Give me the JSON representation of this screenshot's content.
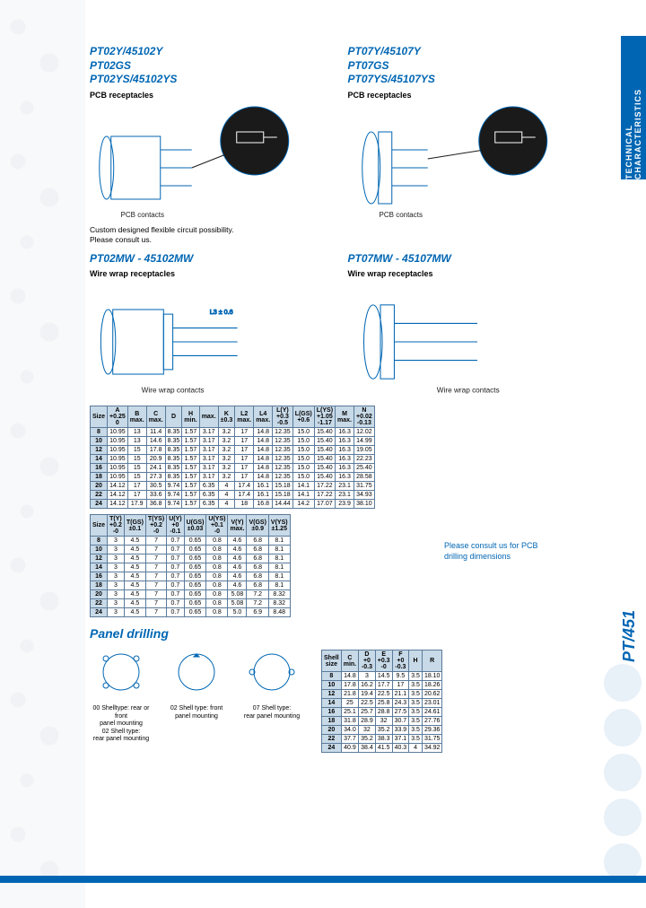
{
  "colors": {
    "brand": "#0066b3",
    "th_bg": "#c8dae8",
    "border": "#5a7a9a",
    "text": "#1a1a1a"
  },
  "side_tab": "TECHNICAL CHARACTERISTICS",
  "side_label": "PT/451",
  "section1": {
    "left": {
      "titles": [
        "PT02Y/45102Y",
        "PT02GS",
        "PT02YS/45102YS"
      ],
      "sub": "PCB receptacles",
      "contact_label": "PCB contacts",
      "note": "Custom designed flexible circuit possibility.\nPlease consult us."
    },
    "right": {
      "titles": [
        "PT07Y/45107Y",
        "PT07GS",
        "PT07YS/45107YS"
      ],
      "sub": "PCB receptacles",
      "contact_label": "PCB contacts"
    }
  },
  "section2": {
    "left": {
      "title": "PT02MW - 45102MW",
      "sub": "Wire wrap receptacles",
      "contact_label": "Wire wrap contacts"
    },
    "right": {
      "title": "PT07MW - 45107MW",
      "sub": "Wire wrap receptacles",
      "contact_label": "Wire wrap contacts"
    }
  },
  "table1": {
    "headers": [
      "Size",
      "A\n+0.25\n0",
      "B\nmax.",
      "C\nmax.",
      "D",
      "H\nmin.",
      "max.",
      "K\n±0.3",
      "L2\nmax.",
      "L4\nmax.",
      "L(Y)\n+0.3\n-0.5",
      "L(GS)\n+0.6",
      "L(YS)\n+1.05\n-1.17",
      "M\nmax.",
      "N\n+0.02\n-0.13"
    ],
    "rows": [
      [
        "8",
        "10.95",
        "13",
        "11.4",
        "8.35",
        "1.57",
        "3.17",
        "3.2",
        "17",
        "14.8",
        "12.35",
        "15.0",
        "15.40",
        "16.3",
        "12.02"
      ],
      [
        "10",
        "10.95",
        "13",
        "14.6",
        "8.35",
        "1.57",
        "3.17",
        "3.2",
        "17",
        "14.8",
        "12.35",
        "15.0",
        "15.40",
        "16.3",
        "14.99"
      ],
      [
        "12",
        "10.95",
        "15",
        "17.8",
        "8.35",
        "1.57",
        "3.17",
        "3.2",
        "17",
        "14.8",
        "12.35",
        "15.0",
        "15.40",
        "16.3",
        "19.05"
      ],
      [
        "14",
        "10.95",
        "15",
        "20.9",
        "8.35",
        "1.57",
        "3.17",
        "3.2",
        "17",
        "14.8",
        "12.35",
        "15.0",
        "15.40",
        "16.3",
        "22.23"
      ],
      [
        "16",
        "10.95",
        "15",
        "24.1",
        "8.35",
        "1.57",
        "3.17",
        "3.2",
        "17",
        "14.8",
        "12.35",
        "15.0",
        "15.40",
        "16.3",
        "25.40"
      ],
      [
        "18",
        "10.95",
        "15",
        "27.3",
        "8.35",
        "1.57",
        "3.17",
        "3.2",
        "17",
        "14.8",
        "12.35",
        "15.0",
        "15.40",
        "16.3",
        "28.58"
      ],
      [
        "20",
        "14.12",
        "17",
        "30.5",
        "9.74",
        "1.57",
        "6.35",
        "4",
        "17.4",
        "16.1",
        "15.18",
        "14.1",
        "17.22",
        "23.1",
        "31.75"
      ],
      [
        "22",
        "14.12",
        "17",
        "33.6",
        "9.74",
        "1.57",
        "6.35",
        "4",
        "17.4",
        "16.1",
        "15.18",
        "14.1",
        "17.22",
        "23.1",
        "34.93"
      ],
      [
        "24",
        "14.12",
        "17.9",
        "36.8",
        "9.74",
        "1.57",
        "6.35",
        "4",
        "18",
        "16.8",
        "14.44",
        "14.2",
        "17.07",
        "23.9",
        "38.10"
      ]
    ]
  },
  "table2": {
    "headers": [
      "Size",
      "T(Y)\n+0.2\n-0",
      "T(GS)\n±0.1",
      "T(YS)\n+0.2\n-0",
      "U(Y)\n+0\n-0.1",
      "U(GS)\n±0.03",
      "U(YS)\n+0.1\n-0",
      "V(Y)\nmax.",
      "V(GS)\n±0.9",
      "V(YS)\n±1.25"
    ],
    "rows": [
      [
        "8",
        "3",
        "4.5",
        "7",
        "0.7",
        "0.65",
        "0.8",
        "4.6",
        "6.8",
        "8.1"
      ],
      [
        "10",
        "3",
        "4.5",
        "7",
        "0.7",
        "0.65",
        "0.8",
        "4.6",
        "6.8",
        "8.1"
      ],
      [
        "12",
        "3",
        "4.5",
        "7",
        "0.7",
        "0.65",
        "0.8",
        "4.6",
        "6.8",
        "8.1"
      ],
      [
        "14",
        "3",
        "4.5",
        "7",
        "0.7",
        "0.65",
        "0.8",
        "4.6",
        "6.8",
        "8.1"
      ],
      [
        "16",
        "3",
        "4.5",
        "7",
        "0.7",
        "0.65",
        "0.8",
        "4.6",
        "6.8",
        "8.1"
      ],
      [
        "18",
        "3",
        "4.5",
        "7",
        "0.7",
        "0.65",
        "0.8",
        "4.6",
        "6.8",
        "8.1"
      ],
      [
        "20",
        "3",
        "4.5",
        "7",
        "0.7",
        "0.65",
        "0.8",
        "5.08",
        "7.2",
        "8.32"
      ],
      [
        "22",
        "3",
        "4.5",
        "7",
        "0.7",
        "0.65",
        "0.8",
        "5.08",
        "7.2",
        "8.32"
      ],
      [
        "24",
        "3",
        "4.5",
        "7",
        "0.7",
        "0.65",
        "0.8",
        "5.0",
        "6.9",
        "8.48"
      ]
    ],
    "consult": "Please consult us for PCB\ndrilling dimensions"
  },
  "panel": {
    "title": "Panel drilling",
    "figs": [
      {
        "cap": "00 Shelltype: rear or front\npanel mounting\n02 Shell type:\nrear panel mounting"
      },
      {
        "cap": "02 Shell type: front\npanel mounting"
      },
      {
        "cap": "07 Shell type:\nrear panel mounting"
      }
    ]
  },
  "table3": {
    "headers": [
      "Shell\nsize",
      "C\nmin.",
      "D\n+0\n-0.3",
      "E\n+0.3\n-0",
      "F\n+0\n-0.3",
      "H",
      "R"
    ],
    "rows": [
      [
        "8",
        "14.8",
        "3",
        "14.5",
        "9.5",
        "3.5",
        "18.10"
      ],
      [
        "10",
        "17.8",
        "16.2",
        "17.7",
        "17",
        "3.5",
        "18.26"
      ],
      [
        "12",
        "21.8",
        "19.4",
        "22.5",
        "21.1",
        "3.5",
        "20.62"
      ],
      [
        "14",
        "25",
        "22.5",
        "25.8",
        "24.3",
        "3.5",
        "23.01"
      ],
      [
        "16",
        "25.1",
        "25.7",
        "28.8",
        "27.5",
        "3.5",
        "24.61"
      ],
      [
        "18",
        "31.8",
        "28.9",
        "32",
        "30.7",
        "3.5",
        "27.76"
      ],
      [
        "20",
        "34.0",
        "32",
        "35.2",
        "33.9",
        "3.5",
        "29.36"
      ],
      [
        "22",
        "37.7",
        "35.2",
        "38.3",
        "37.1",
        "3.5",
        "31.75"
      ],
      [
        "24",
        "40.9",
        "38.4",
        "41.5",
        "40.3",
        "4",
        "34.92"
      ]
    ]
  }
}
